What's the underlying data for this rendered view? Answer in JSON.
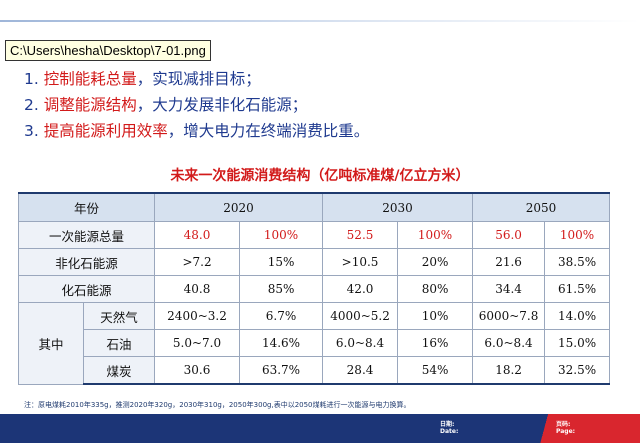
{
  "tooltip": "C:\\Users\\hesha\\Desktop\\7-01.png",
  "points": [
    {
      "num": "1.",
      "highlight": "控制能耗总量",
      "rest": "，实现减排目标；"
    },
    {
      "num": "2.",
      "highlight": "调整能源结构",
      "rest": "，大力发展非化石能源；"
    },
    {
      "num": "3.",
      "highlight": "提高能源利用效率",
      "rest": "，增大电力在终端消费比重。"
    }
  ],
  "table": {
    "title": "未来一次能源消费结构（亿吨标准煤/亿立方米）",
    "year_label": "年份",
    "years": [
      "2020",
      "2030",
      "2050"
    ],
    "total": {
      "label": "一次能源总量",
      "values": [
        "48.0",
        "100%",
        "52.5",
        "100%",
        "56.0",
        "100%"
      ]
    },
    "non_fossil": {
      "label": "非化石能源",
      "values": [
        ">7.2",
        "15%",
        ">10.5",
        "20%",
        "21.6",
        "38.5%"
      ]
    },
    "fossil": {
      "label": "化石能源",
      "values": [
        "40.8",
        "85%",
        "42.0",
        "80%",
        "34.4",
        "61.5%"
      ]
    },
    "among_label": "其中",
    "gas": {
      "label": "天然气",
      "values": [
        "2400~3.2",
        "6.7%",
        "4000~5.2",
        "10%",
        "6000~7.8",
        "14.0%"
      ]
    },
    "oil": {
      "label": "石油",
      "values": [
        "5.0~7.0",
        "14.6%",
        "6.0~8.4",
        "16%",
        "6.0~8.4",
        "15.0%"
      ]
    },
    "coal": {
      "label": "煤炭",
      "values": [
        "30.6",
        "63.7%",
        "28.4",
        "54%",
        "18.2",
        "32.5%"
      ]
    }
  },
  "note": "注：原电煤耗2010年335g，推测2020年320g，2030年310g，2050年300g,表中以2050煤耗进行一次能源与电力换算。",
  "footer": {
    "date_cn": "日期:",
    "date_en": "Date:",
    "page_cn": "页码:",
    "page_en": "Page:"
  },
  "colors": {
    "accent_red": "#d21a1a",
    "navy": "#1c3577",
    "header_fill": "#d6e1ef"
  }
}
